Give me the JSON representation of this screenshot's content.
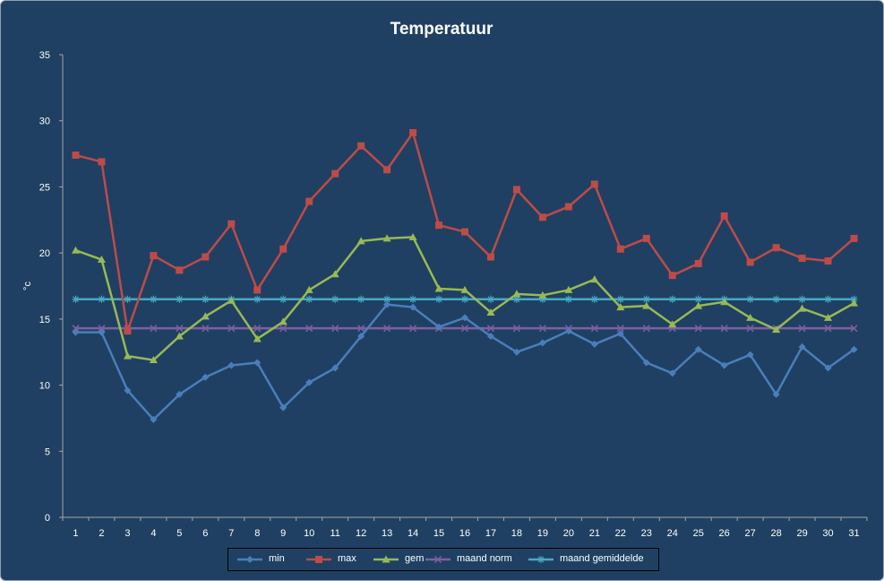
{
  "chart_data": {
    "type": "line",
    "title": "Temperatuur",
    "ylabel": "°c",
    "xlabel": "",
    "ylim": [
      0,
      35
    ],
    "yticks": [
      0,
      5,
      10,
      15,
      20,
      25,
      30,
      35
    ],
    "categories": [
      "1",
      "2",
      "3",
      "4",
      "5",
      "6",
      "7",
      "8",
      "9",
      "10",
      "11",
      "12",
      "13",
      "14",
      "15",
      "16",
      "17",
      "18",
      "19",
      "20",
      "21",
      "22",
      "23",
      "24",
      "25",
      "26",
      "27",
      "28",
      "29",
      "30",
      "31"
    ],
    "grid": false,
    "legend_position": "bottom",
    "series": [
      {
        "name": "min",
        "color": "#4a7ebb",
        "marker": "diamond",
        "values": [
          14.0,
          14.0,
          9.6,
          7.4,
          9.3,
          10.6,
          11.5,
          11.7,
          8.3,
          10.2,
          11.3,
          13.7,
          16.1,
          15.9,
          14.4,
          15.1,
          13.7,
          12.5,
          13.2,
          14.1,
          13.1,
          13.9,
          11.7,
          10.9,
          12.7,
          11.5,
          12.3,
          9.3,
          12.9,
          11.3,
          12.7
        ]
      },
      {
        "name": "max",
        "color": "#be4b48",
        "marker": "square",
        "values": [
          27.4,
          26.9,
          14.1,
          19.8,
          18.7,
          19.7,
          22.2,
          17.2,
          20.3,
          23.9,
          26.0,
          28.1,
          26.3,
          29.1,
          22.1,
          21.6,
          19.7,
          24.8,
          22.7,
          23.5,
          25.2,
          20.3,
          21.1,
          18.3,
          19.2,
          22.8,
          19.3,
          20.4,
          19.6,
          19.4,
          21.1
        ]
      },
      {
        "name": "gem",
        "color": "#98b954",
        "marker": "triangle",
        "values": [
          20.2,
          19.5,
          12.2,
          11.9,
          13.7,
          15.2,
          16.4,
          13.5,
          14.8,
          17.2,
          18.4,
          20.9,
          21.1,
          21.2,
          17.3,
          17.2,
          15.5,
          16.9,
          16.8,
          17.2,
          18.0,
          15.9,
          16.0,
          14.6,
          16.0,
          16.3,
          15.1,
          14.2,
          15.8,
          15.1,
          16.2
        ]
      },
      {
        "name": "maand norm",
        "color": "#7d60a0",
        "marker": "x",
        "values": [
          14.3,
          14.3,
          14.3,
          14.3,
          14.3,
          14.3,
          14.3,
          14.3,
          14.3,
          14.3,
          14.3,
          14.3,
          14.3,
          14.3,
          14.3,
          14.3,
          14.3,
          14.3,
          14.3,
          14.3,
          14.3,
          14.3,
          14.3,
          14.3,
          14.3,
          14.3,
          14.3,
          14.3,
          14.3,
          14.3,
          14.3
        ]
      },
      {
        "name": "maand gemiddelde",
        "color": "#46aac5",
        "marker": "star",
        "values": [
          16.5,
          16.5,
          16.5,
          16.5,
          16.5,
          16.5,
          16.5,
          16.5,
          16.5,
          16.5,
          16.5,
          16.5,
          16.5,
          16.5,
          16.5,
          16.5,
          16.5,
          16.5,
          16.5,
          16.5,
          16.5,
          16.5,
          16.5,
          16.5,
          16.5,
          16.5,
          16.5,
          16.5,
          16.5,
          16.5,
          16.5
        ]
      }
    ]
  }
}
